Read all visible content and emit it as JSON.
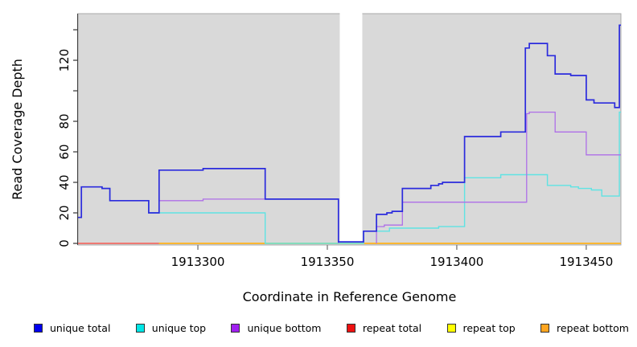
{
  "figure": {
    "kind": "read-coverage-step-plot"
  },
  "chart_data": {
    "type": "line",
    "step": true,
    "title": "",
    "xlabel": "Coordinate in Reference Genome",
    "ylabel": "Read Coverage Depth",
    "xlim": [
      1913253.7,
      1913463.4
    ],
    "ylim": [
      -1.05,
      150.55
    ],
    "grid": false,
    "panel_bg": "#d9d9d9",
    "panel_border": "#a8a8a8",
    "axis_spine_color": "#404040",
    "tick_color_left": "#333333",
    "tick_color_bottom": "#808080",
    "x_ticks": [
      {
        "v": 1913300,
        "label": "1913300"
      },
      {
        "v": 1913350,
        "label": "1913350"
      },
      {
        "v": 1913400,
        "label": "1913400"
      },
      {
        "v": 1913450,
        "label": "1913450"
      }
    ],
    "y_ticks": [
      {
        "v": 0,
        "label": "0"
      },
      {
        "v": 20,
        "label": "20"
      },
      {
        "v": 40,
        "label": "40"
      },
      {
        "v": 60,
        "label": "60"
      },
      {
        "v": 80,
        "label": "80"
      },
      {
        "v": 100,
        "label": ""
      },
      {
        "v": 120,
        "label": "120"
      },
      {
        "v": 140,
        "label": ""
      }
    ],
    "gap_band": {
      "x1": 1913354.8,
      "x2": 1913363.5,
      "color": "#ffffff"
    },
    "series": [
      {
        "name": "repeat top",
        "color": "#ffff00",
        "width": 1.4,
        "points": [
          [
            1913253.7,
            0
          ],
          [
            1913463.4,
            0
          ]
        ]
      },
      {
        "name": "repeat total",
        "color": "#ee5577",
        "width": 1.4,
        "points": [
          [
            1913253.7,
            0
          ],
          [
            1913285,
            0
          ]
        ]
      },
      {
        "name": "repeat bottom",
        "color": "#ffa520",
        "width": 1.4,
        "points": [
          [
            1913285,
            0
          ],
          [
            1913463.4,
            0
          ]
        ]
      },
      {
        "name": "unique top",
        "color": "#5fe3e3",
        "width": 1.4,
        "points": [
          [
            1913253.7,
            17
          ],
          [
            1913255,
            37
          ],
          [
            1913263,
            36
          ],
          [
            1913266,
            28
          ],
          [
            1913281,
            20
          ],
          [
            1913326,
            0
          ],
          [
            1913364,
            8
          ],
          [
            1913374,
            10
          ],
          [
            1913393,
            11
          ],
          [
            1913403,
            43
          ],
          [
            1913417,
            45
          ],
          [
            1913435,
            38
          ],
          [
            1913444,
            37
          ],
          [
            1913447,
            36
          ],
          [
            1913452,
            35
          ],
          [
            1913456,
            31
          ],
          [
            1913462.8,
            86
          ],
          [
            1913463.4,
            86
          ]
        ]
      },
      {
        "name": "unique bottom",
        "part": 1,
        "color": "#ae6fe8",
        "width": 1.3,
        "points": [
          [
            1913285,
            28
          ],
          [
            1913302,
            29
          ],
          [
            1913354.3,
            0
          ]
        ]
      },
      {
        "name": "unique bottom",
        "part": 2,
        "color": "#ae6fe8",
        "width": 1.3,
        "points": [
          [
            1913369,
            0
          ],
          [
            1913369,
            11
          ],
          [
            1913372,
            12
          ],
          [
            1913379,
            27
          ],
          [
            1913427,
            85
          ],
          [
            1913428,
            86
          ],
          [
            1913438,
            73
          ],
          [
            1913450,
            58
          ],
          [
            1913463.4,
            58
          ]
        ]
      },
      {
        "name": "unique total",
        "color": "#2b2bdd",
        "width": 1.7,
        "points": [
          [
            1913253.7,
            17
          ],
          [
            1913255,
            37
          ],
          [
            1913263,
            36
          ],
          [
            1913266,
            28
          ],
          [
            1913281,
            20
          ],
          [
            1913285,
            48
          ],
          [
            1913302,
            49
          ],
          [
            1913326,
            29
          ],
          [
            1913354.3,
            1
          ],
          [
            1913364,
            8
          ],
          [
            1913369,
            19
          ],
          [
            1913373,
            20
          ],
          [
            1913375,
            21
          ],
          [
            1913379,
            36
          ],
          [
            1913390,
            38
          ],
          [
            1913393,
            39
          ],
          [
            1913394.5,
            40
          ],
          [
            1913403,
            70
          ],
          [
            1913417,
            73
          ],
          [
            1913426.5,
            128
          ],
          [
            1913428,
            131
          ],
          [
            1913435,
            123
          ],
          [
            1913438,
            111
          ],
          [
            1913444,
            110
          ],
          [
            1913450,
            94
          ],
          [
            1913453,
            92
          ],
          [
            1913461,
            89
          ],
          [
            1913462.8,
            143
          ],
          [
            1913463.4,
            143
          ]
        ]
      }
    ],
    "legend_position": "bottom",
    "legend": [
      {
        "label": "unique total",
        "color": "#0000ee"
      },
      {
        "label": "unique top",
        "color": "#00e6e6"
      },
      {
        "label": "unique bottom",
        "color": "#a020f0"
      },
      {
        "label": "repeat total",
        "color": "#ee1111"
      },
      {
        "label": "repeat top",
        "color": "#ffff00"
      },
      {
        "label": "repeat bottom",
        "color": "#ffa520"
      }
    ]
  }
}
